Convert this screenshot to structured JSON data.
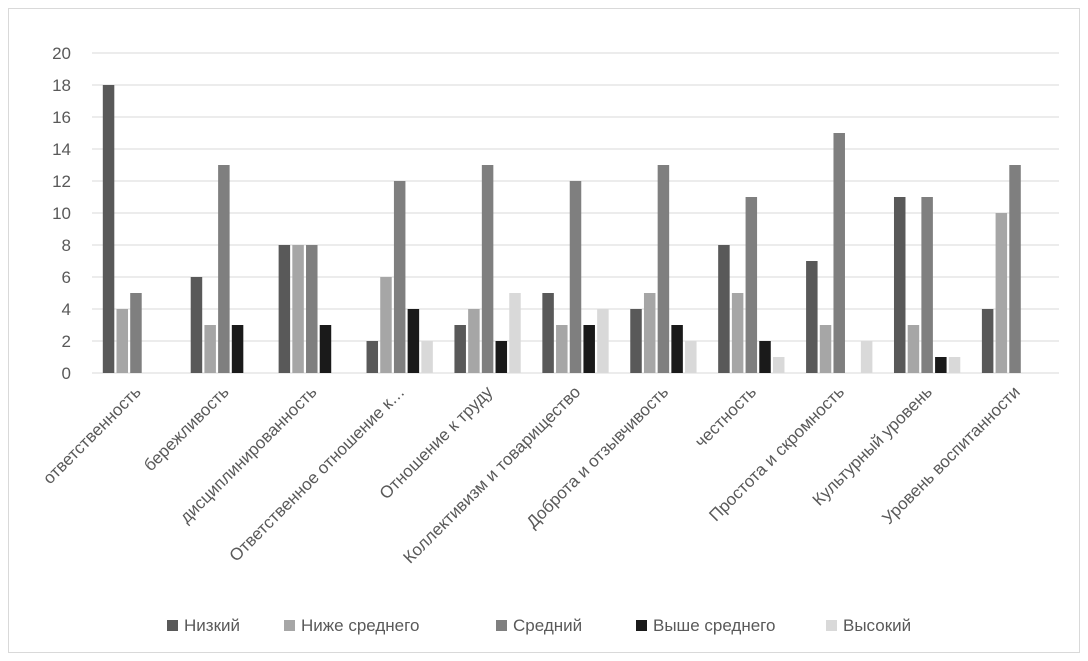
{
  "chart_data": {
    "type": "bar",
    "title": "",
    "xlabel": "",
    "ylabel": "",
    "ylim": [
      0,
      20
    ],
    "yticks": [
      0,
      2,
      4,
      6,
      8,
      10,
      12,
      14,
      16,
      18,
      20
    ],
    "grid": true,
    "legend_position": "bottom",
    "categories": [
      "ответственность",
      "бережливость",
      "дисциплинированность",
      "Ответственное отношение к…",
      "Отношение к труду",
      "Коллективизм и товарищество",
      "Доброта и отзывчивость",
      "честность",
      "Простота и скромность",
      "Культурный уровень",
      "Уровень воспитанности"
    ],
    "series": [
      {
        "name": "Низкий",
        "color": "#595959",
        "values": [
          18,
          6,
          8,
          2,
          3,
          5,
          4,
          8,
          7,
          11,
          4
        ]
      },
      {
        "name": "Ниже среднего",
        "color": "#a6a6a6",
        "values": [
          4,
          3,
          8,
          6,
          4,
          3,
          5,
          5,
          3,
          3,
          10
        ]
      },
      {
        "name": "Средний",
        "color": "#7f7f7f",
        "values": [
          5,
          13,
          8,
          12,
          13,
          12,
          13,
          11,
          15,
          11,
          13
        ]
      },
      {
        "name": "Выше среднего",
        "color": "#1a1a1a",
        "values": [
          0,
          3,
          3,
          4,
          2,
          3,
          3,
          2,
          0,
          1,
          0
        ]
      },
      {
        "name": "Высокий",
        "color": "#d9d9d9",
        "values": [
          0,
          0,
          0,
          2,
          5,
          4,
          2,
          1,
          2,
          1,
          0
        ]
      }
    ]
  }
}
